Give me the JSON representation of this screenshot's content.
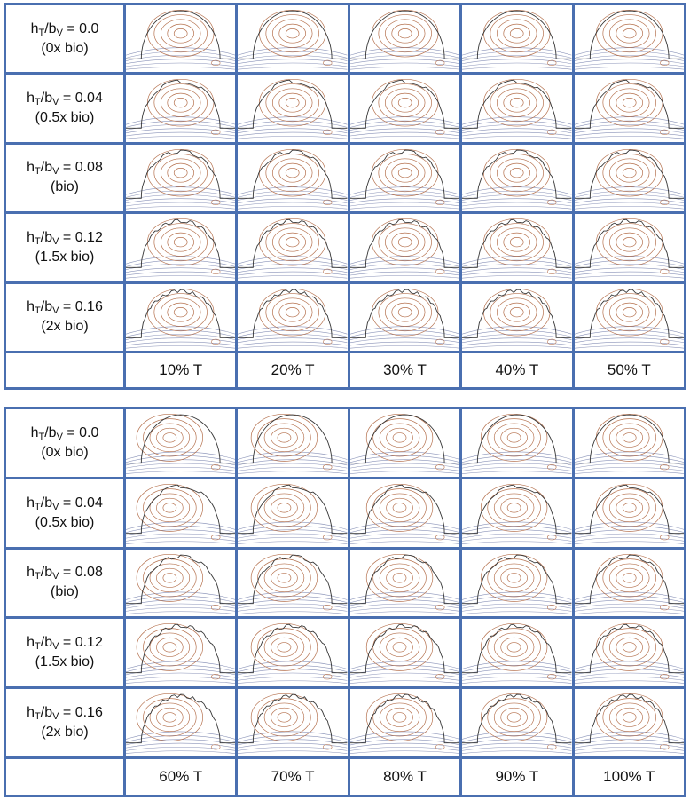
{
  "figure": {
    "row_labels": [
      {
        "ratio_prefix": "h",
        "sub1": "T",
        "mid": "/b",
        "sub2": "V",
        "value_text": " = 0.0",
        "paren": "(0x bio)"
      },
      {
        "ratio_prefix": "h",
        "sub1": "T",
        "mid": "/b",
        "sub2": "V",
        "value_text": " = 0.04",
        "paren": "(0.5x bio)"
      },
      {
        "ratio_prefix": "h",
        "sub1": "T",
        "mid": "/b",
        "sub2": "V",
        "value_text": " = 0.08",
        "paren": "(bio)"
      },
      {
        "ratio_prefix": "h",
        "sub1": "T",
        "mid": "/b",
        "sub2": "V",
        "value_text": " = 0.12",
        "paren": "(1.5x bio)"
      },
      {
        "ratio_prefix": "h",
        "sub1": "T",
        "mid": "/b",
        "sub2": "V",
        "value_text": " = 0.16",
        "paren": "(2x bio)"
      }
    ],
    "top_panel": {
      "column_labels": [
        "10% T",
        "20% T",
        "30% T",
        "40% T",
        "50% T"
      ]
    },
    "bottom_panel": {
      "column_labels": [
        "60% T",
        "70% T",
        "80% T",
        "90% T",
        "100% T"
      ]
    },
    "colors": {
      "border": "#4a6fb0",
      "vortex_contour": "#b5714e",
      "outer_streamline": "#8a93b8",
      "wall": "#333333"
    }
  }
}
